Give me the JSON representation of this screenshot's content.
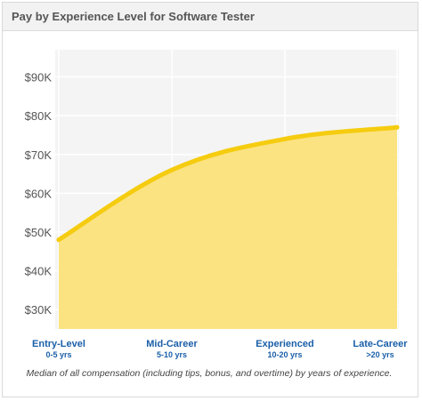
{
  "header": {
    "title": "Pay by Experience Level for Software Tester"
  },
  "caption": "Median of all compensation (including tips, bonus, and overtime) by years of experience.",
  "colors": {
    "fill": "#fbe27a",
    "line": "#f5cc0f",
    "plot_background": "#f4f4f4",
    "gridline": "#ffffff",
    "category_label": "#1a5fa8",
    "tick_label": "#555555"
  },
  "chart_data": {
    "type": "area",
    "title": "Pay by Experience Level for Software Tester",
    "categories": [
      {
        "label": "Entry-Level",
        "sublabel": "0-5 yrs"
      },
      {
        "label": "Mid-Career",
        "sublabel": "5-10 yrs"
      },
      {
        "label": "Experienced",
        "sublabel": "10-20 yrs"
      },
      {
        "label": "Late-Career",
        "sublabel": ">20 yrs"
      }
    ],
    "values": [
      48000,
      66000,
      74000,
      77000
    ],
    "ylim": [
      25000,
      97000
    ],
    "yticks": [
      30000,
      40000,
      50000,
      60000,
      70000,
      80000,
      90000
    ],
    "ytick_labels": [
      "$30K",
      "$40K",
      "$50K",
      "$60K",
      "$70K",
      "$80K",
      "$90K"
    ],
    "grid": true,
    "legend": "none"
  }
}
